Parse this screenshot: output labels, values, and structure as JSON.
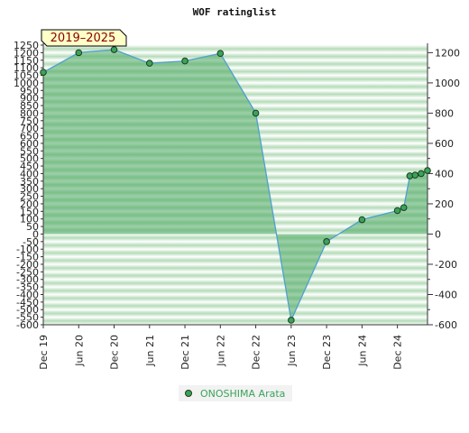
{
  "chart_data": {
    "type": "area",
    "title": "WOF ratinglist",
    "badge": "2019–2025",
    "xlabel": "",
    "ylabel": "",
    "x_tick_labels": [
      "Dec 19",
      "Jun 20",
      "Dec 20",
      "Jun 21",
      "Dec 21",
      "Jun 22",
      "Dec 22",
      "Jun 23",
      "Dec 23",
      "Jun 24",
      "Dec 24"
    ],
    "ylim": [
      -600,
      1250
    ],
    "left_ticks": [
      1250,
      1200,
      1150,
      1100,
      1050,
      1000,
      950,
      900,
      850,
      800,
      750,
      700,
      650,
      600,
      550,
      500,
      450,
      400,
      350,
      300,
      250,
      200,
      150,
      100,
      50,
      0,
      -50,
      -100,
      -150,
      -200,
      -250,
      -300,
      -350,
      -400,
      -450,
      -500,
      -550,
      -600
    ],
    "right_ticks": [
      1200,
      1000,
      800,
      600,
      400,
      200,
      0,
      -200,
      -400,
      -600
    ],
    "grid": "horizontal bands",
    "legend_position": "bottom-center",
    "series": [
      {
        "name": "ONOSHIMA Arata",
        "color": "#3aa35b",
        "points": [
          {
            "x": 0.0,
            "y": 1070
          },
          {
            "x": 1.0,
            "y": 1200
          },
          {
            "x": 2.0,
            "y": 1220
          },
          {
            "x": 3.0,
            "y": 1130
          },
          {
            "x": 4.0,
            "y": 1145
          },
          {
            "x": 5.0,
            "y": 1195
          },
          {
            "x": 6.0,
            "y": 800
          },
          {
            "x": 7.0,
            "y": -570
          },
          {
            "x": 8.0,
            "y": -50
          },
          {
            "x": 9.0,
            "y": 95
          },
          {
            "x": 10.0,
            "y": 155
          },
          {
            "x": 10.18,
            "y": 175
          },
          {
            "x": 10.35,
            "y": 385
          },
          {
            "x": 10.5,
            "y": 390
          },
          {
            "x": 10.67,
            "y": 400
          },
          {
            "x": 10.85,
            "y": 420
          }
        ]
      }
    ]
  }
}
